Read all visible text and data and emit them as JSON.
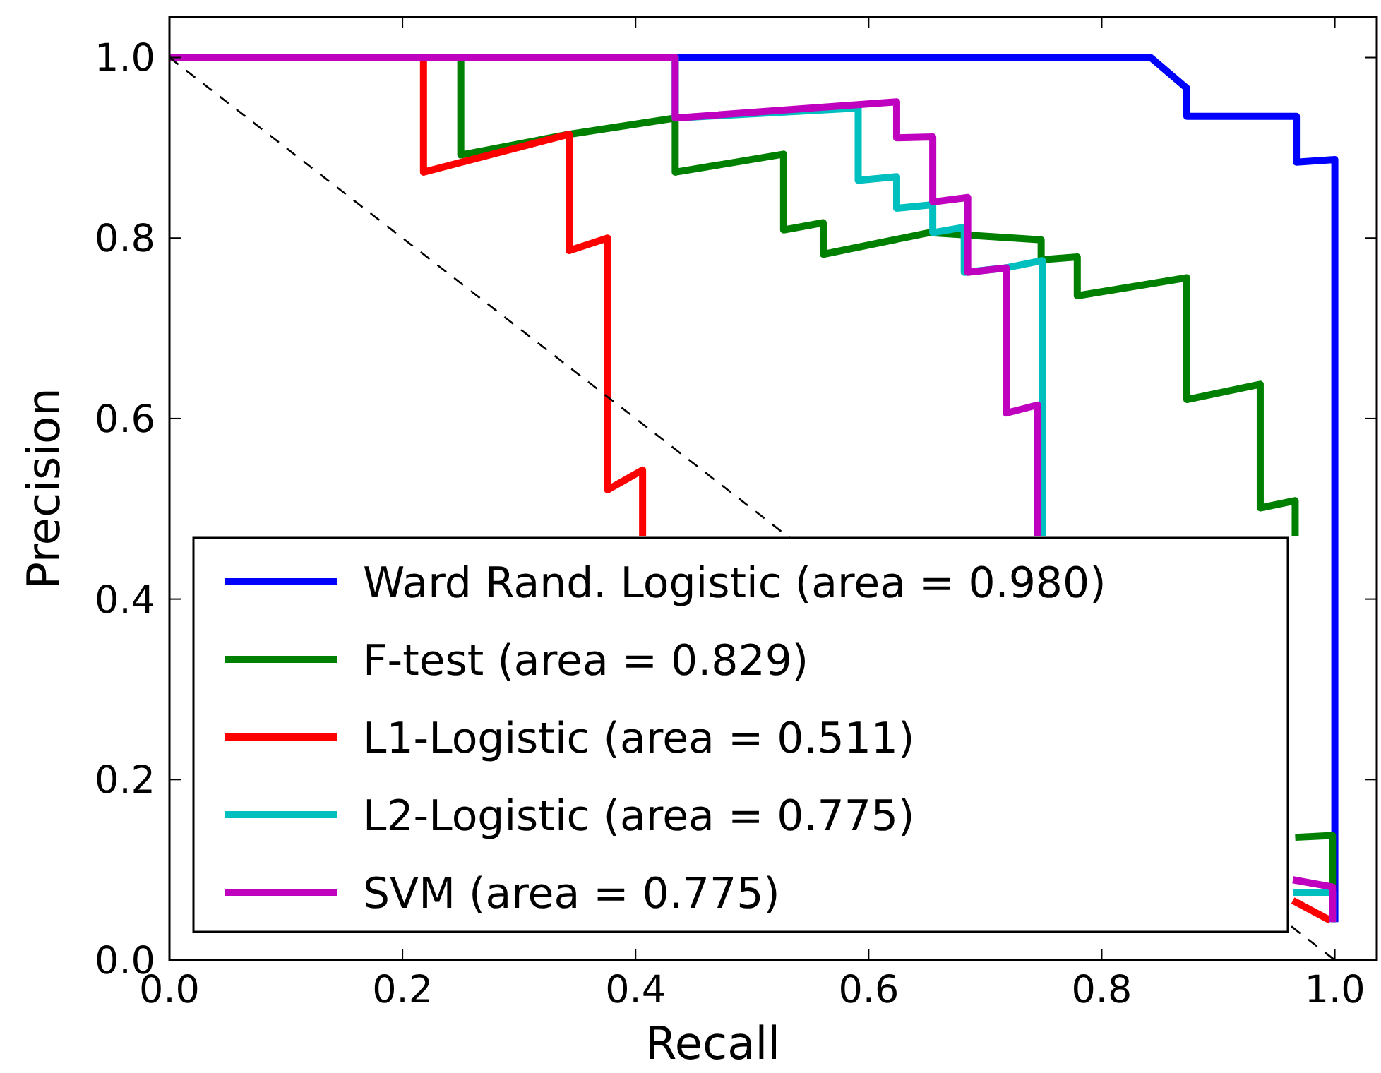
{
  "chart_data": {
    "type": "line",
    "xlabel": "Recall",
    "ylabel": "Precision",
    "xlim": [
      0,
      1.036
    ],
    "ylim": [
      0,
      1.045
    ],
    "xticks": [
      {
        "value": 0,
        "label": "0.0"
      },
      0.2,
      0.4,
      0.6,
      0.8,
      {
        "value": 1,
        "label": "1.0"
      }
    ],
    "yticks": [
      {
        "value": 0,
        "label": "0.0"
      },
      0.2,
      0.4,
      0.6,
      0.8,
      {
        "value": 1,
        "label": "1.0"
      }
    ],
    "grid": false,
    "legend": "bottom",
    "line_style": "solid",
    "marker": "none",
    "series": [
      {
        "name": "Ward Rand. Logistic (area = 0.980)",
        "color": "#0000ff",
        "x": [
          0,
          0.842,
          0.873,
          0.873,
          0.967,
          0.967,
          1.0,
          1.0
        ],
        "values": [
          1,
          1,
          0.966,
          0.935,
          0.935,
          0.884,
          0.887,
          0.042
        ]
      },
      {
        "name": "F-test (area = 0.829)",
        "color": "#008000",
        "x": [
          0,
          0.25,
          0.25,
          0.343,
          0.434,
          0.434,
          0.527,
          0.527,
          0.561,
          0.561,
          0.652,
          0.748,
          0.748,
          0.779,
          0.779,
          0.873,
          0.873,
          0.936,
          0.936,
          0.966,
          0.966,
          null,
          0.966,
          0.998,
          0.998
        ],
        "values": [
          1,
          1,
          0.892,
          0.915,
          0.933,
          0.873,
          0.893,
          0.809,
          0.817,
          0.782,
          0.806,
          0.798,
          0.776,
          0.779,
          0.736,
          0.756,
          0.621,
          0.638,
          0.501,
          0.509,
          0.47,
          null,
          0.136,
          0.138,
          0.08
        ]
      },
      {
        "name": "L1-Logistic (area = 0.511)",
        "color": "#ff0000",
        "x": [
          0,
          0.218,
          0.218,
          0.343,
          0.343,
          0.376,
          0.376,
          0.406,
          0.406,
          null,
          0.964,
          0.996
        ],
        "values": [
          1,
          1,
          0.873,
          0.915,
          0.786,
          0.8,
          0.521,
          0.543,
          0.47,
          null,
          0.066,
          0.044
        ]
      },
      {
        "name": "L2-Logistic (area = 0.775)",
        "color": "#00bfbf",
        "x": [
          0,
          0.434,
          0.434,
          0.591,
          0.591,
          0.624,
          0.624,
          0.655,
          0.655,
          0.682,
          0.682,
          0.718,
          0.749,
          0.749,
          null,
          0.964,
          0.998,
          0.998
        ],
        "values": [
          1,
          1,
          0.933,
          0.944,
          0.864,
          0.868,
          0.833,
          0.837,
          0.806,
          0.812,
          0.762,
          0.767,
          0.775,
          0.47,
          null,
          0.075,
          0.075,
          0.042
        ]
      },
      {
        "name": "SVM (area = 0.775)",
        "color": "#bf00bf",
        "x": [
          0,
          0.434,
          0.434,
          0.624,
          0.624,
          0.655,
          0.655,
          0.685,
          0.685,
          0.718,
          0.718,
          0.745,
          0.745,
          null,
          0.964,
          0.964,
          0.998,
          0.998
        ],
        "values": [
          1,
          1,
          0.933,
          0.951,
          0.911,
          0.912,
          0.84,
          0.845,
          0.762,
          0.767,
          0.606,
          0.615,
          0.47,
          null,
          0.089,
          0.089,
          0.081,
          0.042
        ]
      },
      {
        "color": "#000000",
        "line_style": "dashed",
        "x": [
          0,
          1
        ],
        "values": [
          1,
          0
        ]
      }
    ]
  }
}
